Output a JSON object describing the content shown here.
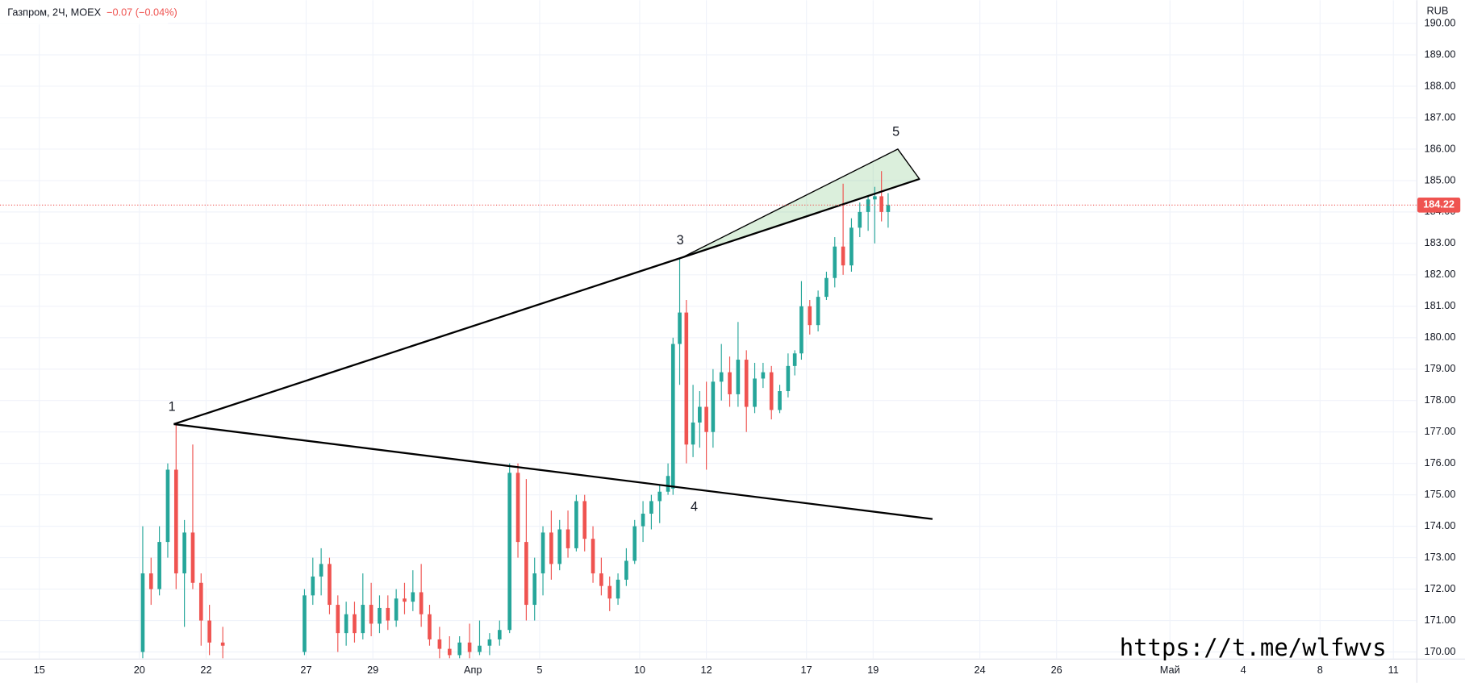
{
  "chart_data": {
    "type": "candlestick",
    "title": "Газпром, 2Ч, MOEX",
    "change": "−0.07 (−0.04%)",
    "currency": "RUB",
    "watermark": "https://t.me/wlfwvs",
    "up_color": "#26a69a",
    "down_color": "#ef5350",
    "grid": true,
    "last_price": 184.22,
    "xlim": [
      -1.18,
      41.29
    ],
    "ylim": [
      169.79,
      190.74
    ],
    "xticks": [
      {
        "value": 0,
        "label": "15"
      },
      {
        "value": 3,
        "label": "20"
      },
      {
        "value": 5,
        "label": "22"
      },
      {
        "value": 8,
        "label": "27"
      },
      {
        "value": 10,
        "label": "29"
      },
      {
        "value": 13,
        "label": "Апр"
      },
      {
        "value": 15,
        "label": "5"
      },
      {
        "value": 18,
        "label": "10"
      },
      {
        "value": 20,
        "label": "12"
      },
      {
        "value": 23,
        "label": "17"
      },
      {
        "value": 25,
        "label": "19"
      },
      {
        "value": 28.2,
        "label": "24"
      },
      {
        "value": 30.5,
        "label": "26"
      },
      {
        "value": 33.9,
        "label": "Май"
      },
      {
        "value": 36.1,
        "label": "4"
      },
      {
        "value": 38.4,
        "label": "8"
      },
      {
        "value": 40.6,
        "label": "11"
      }
    ],
    "yticks": [
      {
        "value": 170,
        "label": "170.00"
      },
      {
        "value": 171,
        "label": "171.00"
      },
      {
        "value": 172,
        "label": "172.00"
      },
      {
        "value": 173,
        "label": "173.00"
      },
      {
        "value": 174,
        "label": "174.00"
      },
      {
        "value": 175,
        "label": "175.00"
      },
      {
        "value": 176,
        "label": "176.00"
      },
      {
        "value": 177,
        "label": "177.00"
      },
      {
        "value": 178,
        "label": "178.00"
      },
      {
        "value": 179,
        "label": "179.00"
      },
      {
        "value": 180,
        "label": "180.00"
      },
      {
        "value": 181,
        "label": "181.00"
      },
      {
        "value": 182,
        "label": "182.00"
      },
      {
        "value": 183,
        "label": "183.00"
      },
      {
        "value": 184,
        "label": "184.00"
      },
      {
        "value": 185,
        "label": "185.00"
      },
      {
        "value": 186,
        "label": "186.00"
      },
      {
        "value": 187,
        "label": "187.00"
      },
      {
        "value": 188,
        "label": "188.00"
      },
      {
        "value": 189,
        "label": "189.00"
      },
      {
        "value": 190,
        "label": "190.00"
      }
    ],
    "x": [
      3.1,
      3.35,
      3.6,
      3.85,
      4.1,
      4.35,
      4.6,
      4.85,
      5.1,
      5.5,
      7.95,
      8.2,
      8.45,
      8.7,
      8.95,
      9.2,
      9.45,
      9.7,
      9.95,
      10.2,
      10.45,
      10.7,
      10.95,
      11.2,
      11.45,
      11.7,
      12.0,
      12.3,
      12.6,
      12.9,
      13.2,
      13.5,
      13.8,
      14.1,
      14.35,
      14.6,
      14.85,
      15.1,
      15.35,
      15.6,
      15.85,
      16.1,
      16.35,
      16.6,
      16.85,
      17.1,
      17.35,
      17.6,
      17.85,
      18.1,
      18.35,
      18.6,
      18.85,
      19.0,
      19.2,
      19.4,
      19.6,
      19.8,
      20.0,
      20.2,
      20.45,
      20.7,
      20.95,
      21.2,
      21.45,
      21.7,
      21.95,
      22.2,
      22.45,
      22.65,
      22.85,
      23.1,
      23.35,
      23.6,
      23.85,
      24.1,
      24.35,
      24.6,
      24.85,
      25.05,
      25.25,
      25.45
    ],
    "open": [
      170,
      172.5,
      172,
      173.5,
      175.8,
      172.5,
      173.8,
      172.2,
      171,
      170.3,
      170,
      171.8,
      172.4,
      172.8,
      171.5,
      170.6,
      171.2,
      170.6,
      171.5,
      170.9,
      171.4,
      171,
      171.7,
      171.6,
      171.9,
      171.2,
      170.4,
      170.1,
      169.9,
      170.3,
      170,
      170.2,
      170.4,
      170.7,
      175.7,
      173.5,
      171.5,
      172.5,
      173.8,
      172.8,
      173.9,
      173.3,
      174.8,
      173.6,
      172.5,
      172.1,
      171.7,
      172.3,
      172.9,
      174,
      174.4,
      174.8,
      175.1,
      175.2,
      179.8,
      180.8,
      176.6,
      177.3,
      177.8,
      177,
      178.6,
      178.9,
      178.2,
      179.3,
      177.8,
      178.7,
      178.9,
      177.7,
      178.3,
      179.1,
      179.5,
      181,
      180.4,
      181.3,
      181.9,
      182.9,
      182.3,
      183.5,
      184,
      184.4,
      184.5,
      184
    ],
    "high": [
      174,
      173,
      174,
      176,
      177.3,
      174.2,
      176.6,
      172.5,
      171.5,
      170.8,
      172,
      173,
      173.3,
      173,
      171.8,
      171.6,
      171.6,
      172.5,
      172.2,
      171.8,
      171.8,
      172,
      172.2,
      172.6,
      172.8,
      171.5,
      170.8,
      170.5,
      170.5,
      170.9,
      171,
      170.6,
      171,
      176,
      176,
      175.5,
      173,
      174,
      174.5,
      174.2,
      174.5,
      175,
      175,
      174,
      173,
      172.4,
      172.5,
      173.3,
      174.2,
      174.8,
      175,
      175.3,
      176,
      180,
      182.5,
      181.2,
      178.5,
      178.3,
      178.6,
      179,
      179.8,
      179.4,
      180.5,
      179.6,
      179.2,
      179.2,
      179.1,
      178.5,
      179.5,
      179.6,
      181.8,
      181.2,
      181.5,
      182.1,
      183.2,
      184.9,
      183.8,
      184.3,
      184.5,
      184.8,
      185.3,
      184.6
    ],
    "low": [
      169.8,
      171.5,
      171.8,
      173,
      172,
      170.8,
      172,
      170.2,
      169.9,
      169.8,
      169.9,
      171.5,
      171.8,
      171.2,
      170,
      170.2,
      170.3,
      170.4,
      170.5,
      170.6,
      170.7,
      170.8,
      171.2,
      171.3,
      170.8,
      170.2,
      169.8,
      169.8,
      169.8,
      169.8,
      169.9,
      169.9,
      170.2,
      170.6,
      173,
      171,
      171,
      171.8,
      172.3,
      172.6,
      173,
      173.2,
      173.2,
      172.2,
      171.8,
      171.3,
      171.5,
      172.1,
      172.8,
      173.5,
      173.9,
      174.1,
      175,
      175,
      178.5,
      176,
      176.2,
      176.5,
      175.8,
      176.5,
      178,
      177.8,
      177.8,
      177,
      177.6,
      178.4,
      177.4,
      177.6,
      178.1,
      178.8,
      179.3,
      180.1,
      180.2,
      181.2,
      181.6,
      182,
      182.1,
      183.2,
      183.4,
      183,
      183.7,
      183.5
    ],
    "close": [
      172.5,
      172,
      173.5,
      175.8,
      172.5,
      173.8,
      172.2,
      171,
      170.3,
      170.2,
      171.8,
      172.4,
      172.8,
      171.5,
      170.6,
      171.2,
      170.6,
      171.5,
      170.9,
      171.4,
      171,
      171.7,
      171.6,
      171.9,
      171.2,
      170.4,
      170.1,
      169.9,
      170.3,
      170,
      170.2,
      170.4,
      170.7,
      175.7,
      173.5,
      171.5,
      172.5,
      173.8,
      172.8,
      173.9,
      173.3,
      174.8,
      173.6,
      172.5,
      172.1,
      171.7,
      172.3,
      172.9,
      174,
      174.4,
      174.8,
      175.1,
      175.6,
      179.8,
      180.8,
      176.6,
      177.3,
      177.8,
      177,
      178.6,
      178.9,
      178.2,
      179.3,
      177.8,
      178.7,
      178.9,
      177.7,
      178.3,
      179.1,
      179.5,
      181,
      180.4,
      181.3,
      181.9,
      182.9,
      182.3,
      183.5,
      184,
      184.4,
      184.5,
      184,
      184.22
    ],
    "trendlines": [
      [
        [
          4.03,
          177.25
        ],
        [
          19.27,
          182.55
        ],
        [
          26.39,
          185.05
        ]
      ],
      [
        [
          4.03,
          177.25
        ],
        [
          26.78,
          174.23
        ]
      ]
    ],
    "wedge": [
      [
        19.27,
        182.55
      ],
      [
        25.74,
        186.0
      ],
      [
        26.39,
        185.05
      ]
    ],
    "points": [
      {
        "label": "1",
        "x": 4.03,
        "y": 177.25
      },
      {
        "label": "3",
        "x": 19.27,
        "y": 182.55
      },
      {
        "label": "4",
        "x": 19.41,
        "y": 175.2
      },
      {
        "label": "5",
        "x": 25.74,
        "y": 186.0
      }
    ]
  }
}
